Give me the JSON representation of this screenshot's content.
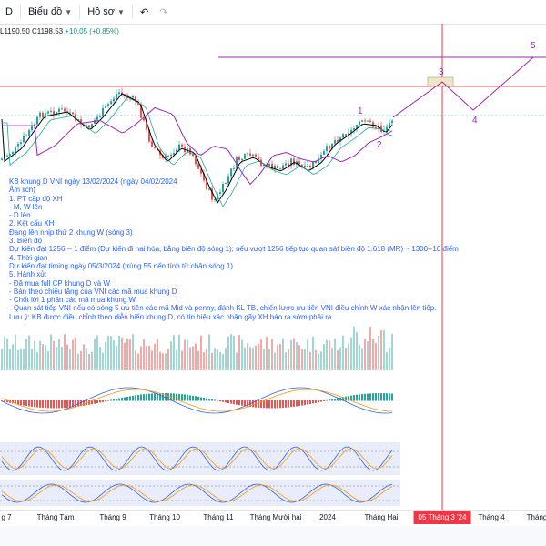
{
  "toolbar": {
    "timeframe": "D",
    "chart_label": "Biểu đồ",
    "profile_label": "Hồ sơ"
  },
  "quote": {
    "low": "L1190.50",
    "close": "C1198.53",
    "change": "+10.05 (+0.85%)"
  },
  "annotation": [
    "KB khung D VNI ngày 13/02/2024 (ngày 04/02/2024",
    "Âm lịch)",
    "1. PT cấp độ XH",
    "- M, W lên",
    "- D lên",
    "2. Kết cấu XH",
    "Đang lên nhịp thứ 2 khung W (sóng 3)",
    "3. Biên độ",
    "Dự kiến đạt 1256 -- 1 điểm (Dự kiến đi hai hòa, bằng biên độ sóng 1); nếu vượt 1256 tiếp tục quan sát biên độ 1.618 (MR) ~ 1300--10 điểm",
    "4. Thời gian",
    "Dự kiến đạt timing ngày 05/3/2024 (trùng 55 nến tính từ chân sóng 1)",
    "5. Hành xử:",
    "- Đã mua full CP khung D và W",
    "- Bán theo chiều tăng của VNI các mã mua khung D",
    "- Chốt lời 1 phần các mã mua khung W",
    "- Quan sát tiếp VNI nếu có sóng 5 ưu tiên các mã Mid và penny, đánh KL TB, chiến lược ưu tiên VNI điều chỉnh W xác nhận lên tiếp.",
    "Lưu ý: KB được điều chỉnh theo diễn biến khung D, có tín hiệu xác nhận gãy XH báo ra sớm phải ra"
  ],
  "waves": [
    "1",
    "2",
    "3",
    "4",
    "5"
  ],
  "time_axis": [
    "g 7",
    "Tháng Tám",
    "Tháng 9",
    "Tháng 10",
    "Tháng 11",
    "Tháng Mười hai",
    "2024",
    "Tháng Hai",
    "Tháng 4",
    "Tháng"
  ],
  "time_axis_highlight": "05 Tháng 3 '24",
  "colors": {
    "up": "#26a69a",
    "down": "#ef5350",
    "ma_short": "#000000",
    "ma_long": "#9c27b0",
    "annotation": "#2962ff",
    "forecast": "#9c27b0",
    "highlight": "#f23645"
  },
  "icons": [
    "chevron-down-icon",
    "undo-icon",
    "redo-icon"
  ]
}
